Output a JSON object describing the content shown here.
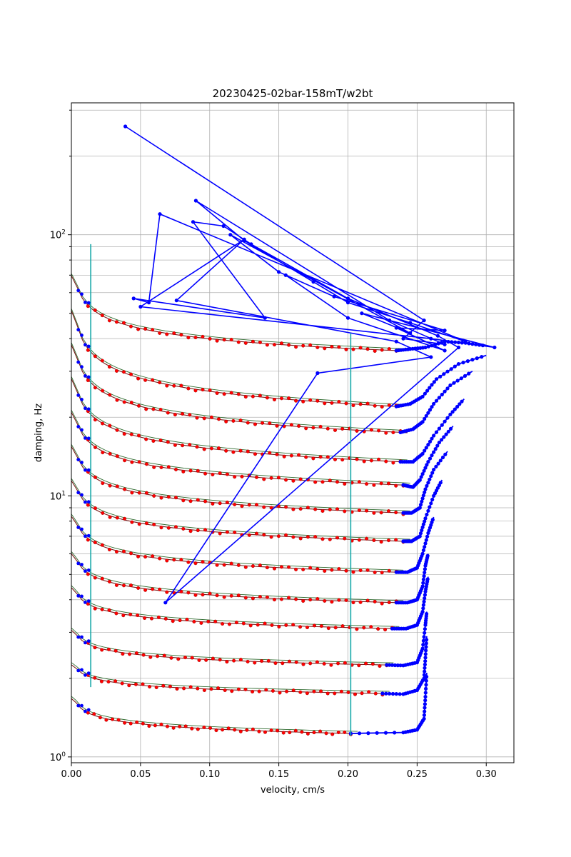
{
  "chart_data": {
    "type": "line",
    "title": "20230425-02bar-158mT/w2bt",
    "xlabel": "velocity, cm/s",
    "ylabel": "damping, Hz",
    "xlim": [
      0,
      0.32
    ],
    "ylim": [
      0.95,
      320
    ],
    "yscale": "log",
    "grid": true,
    "x_ticks": [
      "0.00",
      "0.05",
      "0.10",
      "0.15",
      "0.20",
      "0.25",
      "0.30"
    ],
    "x_tick_values": [
      0,
      0.05,
      0.1,
      0.15,
      0.2,
      0.25,
      0.3
    ],
    "y_ticks": [
      {
        "base": "10",
        "exp": "0",
        "value": 1
      },
      {
        "base": "10",
        "exp": "1",
        "value": 10
      },
      {
        "base": "10",
        "exp": "2",
        "value": 100
      }
    ],
    "vertical_markers": [
      0.014,
      0.202
    ],
    "colors": {
      "raw": "#0000ff",
      "fit_points": "#ff0000",
      "model": "#7a1a1a",
      "model_alt": "#2f6b2f",
      "markers": "#17a8a8"
    },
    "series": [
      {
        "v_start": 0.005,
        "d_start": 1.95,
        "v_min": 0.202,
        "d_min": 1.23,
        "tail": [
          [
            0.24,
            1.24
          ],
          [
            0.25,
            1.27
          ],
          [
            0.255,
            1.4
          ],
          [
            0.256,
            1.7
          ],
          [
            0.257,
            2.1
          ]
        ]
      },
      {
        "v_start": 0.005,
        "d_start": 2.55,
        "v_min": 0.225,
        "d_min": 1.75,
        "tail": [
          [
            0.24,
            1.74
          ],
          [
            0.25,
            1.8
          ],
          [
            0.255,
            2.0
          ],
          [
            0.256,
            2.4
          ],
          [
            0.257,
            2.9
          ]
        ]
      },
      {
        "v_start": 0.005,
        "d_start": 3.55,
        "v_min": 0.228,
        "d_min": 2.25,
        "tail": [
          [
            0.24,
            2.24
          ],
          [
            0.25,
            2.3
          ],
          [
            0.254,
            2.6
          ],
          [
            0.256,
            3.2
          ],
          [
            0.257,
            3.6
          ]
        ]
      },
      {
        "v_start": 0.005,
        "d_start": 5.3,
        "v_min": 0.232,
        "d_min": 3.1,
        "tail": [
          [
            0.242,
            3.1
          ],
          [
            0.25,
            3.2
          ],
          [
            0.254,
            3.6
          ],
          [
            0.256,
            4.3
          ],
          [
            0.258,
            4.9
          ]
        ]
      },
      {
        "v_start": 0.005,
        "d_start": 7.4,
        "v_min": 0.235,
        "d_min": 3.9,
        "tail": [
          [
            0.243,
            3.9
          ],
          [
            0.25,
            4.0
          ],
          [
            0.254,
            4.5
          ],
          [
            0.256,
            5.4
          ],
          [
            0.258,
            6.0
          ]
        ]
      },
      {
        "v_start": 0.005,
        "d_start": 10.6,
        "v_min": 0.235,
        "d_min": 5.1,
        "tail": [
          [
            0.243,
            5.1
          ],
          [
            0.25,
            5.3
          ],
          [
            0.254,
            6.0
          ],
          [
            0.258,
            7.2
          ],
          [
            0.262,
            8.3
          ]
        ]
      },
      {
        "v_start": 0.005,
        "d_start": 14.8,
        "v_min": 0.24,
        "d_min": 6.7,
        "tail": [
          [
            0.246,
            6.7
          ],
          [
            0.252,
            7.0
          ],
          [
            0.256,
            8.2
          ],
          [
            0.262,
            10.0
          ],
          [
            0.268,
            11.5
          ]
        ]
      },
      {
        "v_start": 0.005,
        "d_start": 20.5,
        "v_min": 0.24,
        "d_min": 8.6,
        "tail": [
          [
            0.246,
            8.6
          ],
          [
            0.252,
            9.0
          ],
          [
            0.256,
            10.6
          ],
          [
            0.262,
            12.6
          ],
          [
            0.272,
            14.8
          ]
        ]
      },
      {
        "v_start": 0.005,
        "d_start": 28.5,
        "v_min": 0.24,
        "d_min": 11.0,
        "tail": [
          [
            0.247,
            10.8
          ],
          [
            0.252,
            11.5
          ],
          [
            0.258,
            13.5
          ],
          [
            0.266,
            16.0
          ],
          [
            0.276,
            18.5
          ]
        ]
      },
      {
        "v_start": 0.005,
        "d_start": 40.0,
        "v_min": 0.238,
        "d_min": 13.5,
        "tail": [
          [
            0.247,
            13.5
          ],
          [
            0.254,
            14.5
          ],
          [
            0.262,
            17.0
          ],
          [
            0.274,
            20.5
          ],
          [
            0.284,
            23.5
          ]
        ]
      },
      {
        "v_start": 0.005,
        "d_start": 55.0,
        "v_min": 0.238,
        "d_min": 17.5,
        "tail": [
          [
            0.247,
            18.0
          ],
          [
            0.254,
            19.2
          ],
          [
            0.262,
            22.5
          ],
          [
            0.274,
            26.5
          ],
          [
            0.29,
            30.0
          ]
        ]
      },
      {
        "v_start": 0.005,
        "d_start": 77.0,
        "v_min": 0.235,
        "d_min": 22.0,
        "tail": [
          [
            0.245,
            22.5
          ],
          [
            0.254,
            24.0
          ],
          [
            0.264,
            28.0
          ],
          [
            0.28,
            32.0
          ],
          [
            0.3,
            34.5
          ]
        ]
      },
      {
        "v_start": 0.005,
        "d_start": 96.0,
        "v_min": 0.235,
        "d_min": 36.0,
        "tail": [
          [
            0.245,
            36.5
          ],
          [
            0.256,
            37.0
          ],
          [
            0.27,
            39.0
          ],
          [
            0.285,
            38.5
          ],
          [
            0.3,
            37.5
          ]
        ]
      }
    ],
    "scatter_trace": [
      [
        0.039,
        260
      ],
      [
        0.255,
        47
      ],
      [
        0.24,
        40
      ],
      [
        0.27,
        38
      ],
      [
        0.23,
        47
      ],
      [
        0.09,
        135
      ],
      [
        0.125,
        95
      ],
      [
        0.175,
        66
      ],
      [
        0.2,
        55
      ],
      [
        0.245,
        46
      ],
      [
        0.285,
        39
      ],
      [
        0.064,
        120
      ],
      [
        0.056,
        55
      ],
      [
        0.045,
        57
      ],
      [
        0.14,
        48
      ],
      [
        0.088,
        112
      ],
      [
        0.11,
        108
      ],
      [
        0.13,
        92
      ],
      [
        0.2,
        57
      ],
      [
        0.265,
        41
      ],
      [
        0.28,
        37
      ],
      [
        0.068,
        3.9
      ],
      [
        0.178,
        29.5
      ],
      [
        0.26,
        34
      ],
      [
        0.235,
        39
      ],
      [
        0.076,
        56
      ],
      [
        0.125,
        96
      ],
      [
        0.05,
        53
      ],
      [
        0.26,
        40
      ],
      [
        0.306,
        37
      ],
      [
        0.21,
        50
      ],
      [
        0.245,
        42
      ],
      [
        0.115,
        100
      ],
      [
        0.15,
        72
      ],
      [
        0.19,
        58
      ],
      [
        0.27,
        43
      ],
      [
        0.235,
        44
      ],
      [
        0.27,
        36
      ],
      [
        0.2,
        48
      ],
      [
        0.155,
        70
      ]
    ]
  }
}
